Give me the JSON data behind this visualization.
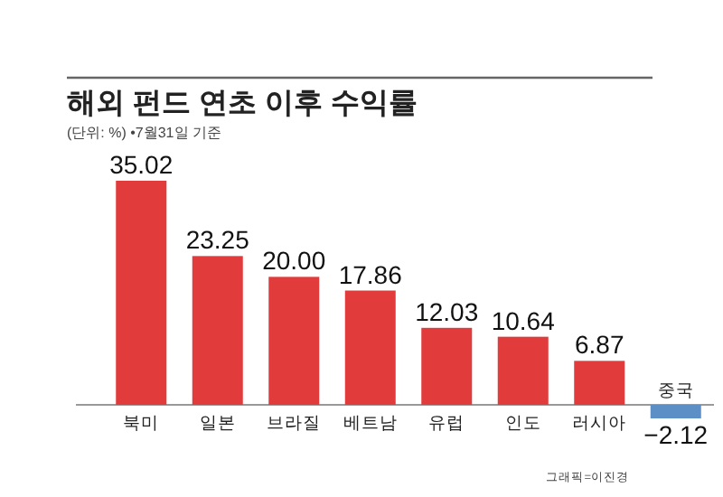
{
  "chart_data": {
    "type": "bar",
    "title": "해외 펀드 연초 이후 수익률",
    "subtitle": "(단위: %)  •7월31일 기준",
    "categories": [
      "북미",
      "일본",
      "브라질",
      "베트남",
      "유럽",
      "인도",
      "러시아",
      "중국"
    ],
    "values": [
      35.02,
      23.25,
      20.0,
      17.86,
      12.03,
      10.64,
      6.87,
      -2.12
    ],
    "value_labels": [
      "35.02",
      "23.25",
      "20.00",
      "17.86",
      "12.03",
      "10.64",
      "6.87",
      "−2.12"
    ],
    "colors": [
      "#e23b3b",
      "#e23b3b",
      "#e23b3b",
      "#e23b3b",
      "#e23b3b",
      "#e23b3b",
      "#e23b3b",
      "#5b8fc6"
    ],
    "annotations": [
      "그래픽=이진경"
    ]
  }
}
